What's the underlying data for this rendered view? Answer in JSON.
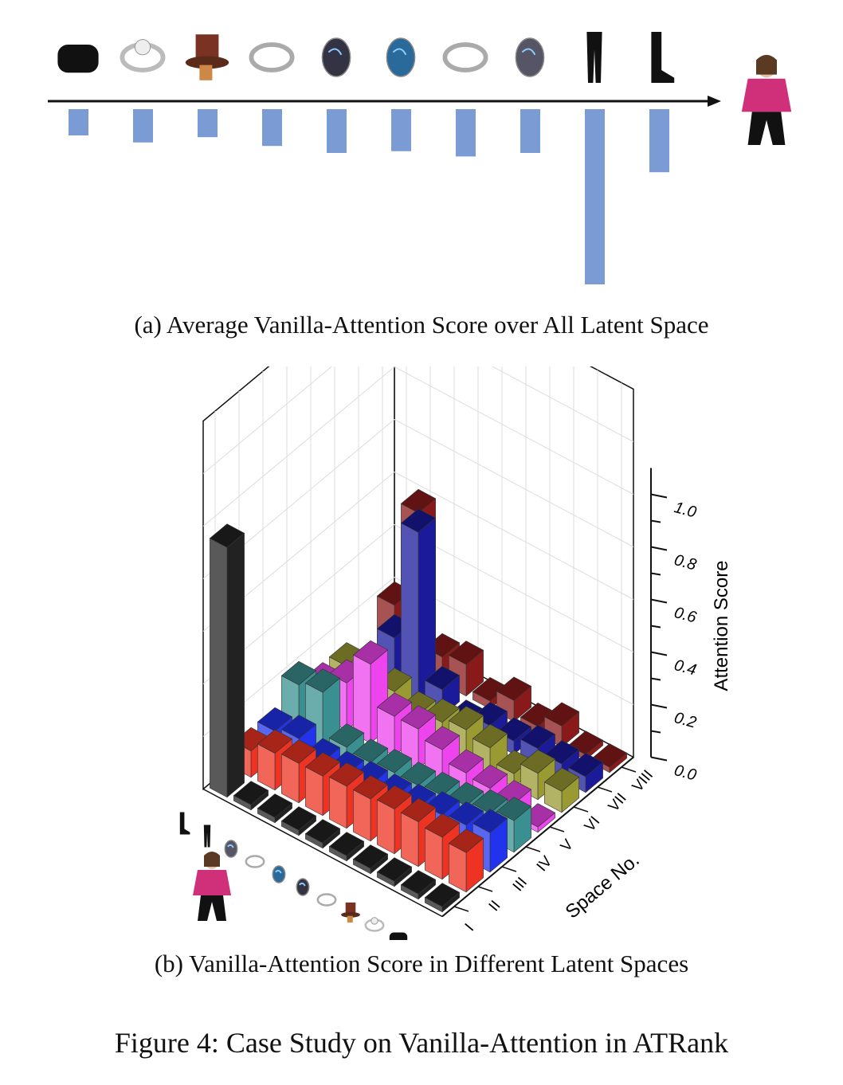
{
  "chart_data": [
    {
      "type": "bar",
      "title": "(a) Average Vanilla-Attention Score over All Latent Space",
      "orientation": "downward",
      "note": "relative attention magnitude, no axis printed",
      "categories": [
        "bag",
        "ring",
        "hat",
        "ring-2",
        "bead",
        "bead-2",
        "ring-3",
        "bead-3",
        "leggings",
        "boots"
      ],
      "values": [
        0.15,
        0.19,
        0.16,
        0.21,
        0.25,
        0.24,
        0.27,
        0.25,
        1.0,
        0.36
      ],
      "target_item": "woman-in-pink-hoodie",
      "color": "#7b9bd4"
    },
    {
      "type": "bar3d",
      "title": "(b) Vanilla-Attention Score in Different Latent Spaces",
      "zlabel": "Attention Score",
      "ylabel": "Space No.",
      "zlim": [
        0,
        1.0
      ],
      "zticks": [
        "0.0",
        "0.2",
        "0.4",
        "0.6",
        "0.8",
        "1.0"
      ],
      "spaces": [
        "I",
        "II",
        "III",
        "IV",
        "V",
        "VI",
        "VII",
        "VIII"
      ],
      "items": [
        "bag",
        "ring",
        "hat",
        "ring-2",
        "bead",
        "bead-2",
        "ring-3",
        "bead-3",
        "leggings",
        "boots"
      ],
      "series": [
        {
          "name": "I",
          "color": "#222222",
          "values": [
            0.02,
            0.02,
            0.02,
            0.02,
            0.02,
            0.02,
            0.02,
            0.02,
            0.02,
            0.95
          ]
        },
        {
          "name": "II",
          "color": "#ee3322",
          "values": [
            0.15,
            0.16,
            0.17,
            0.17,
            0.16,
            0.16,
            0.15,
            0.15,
            0.14,
            0.1
          ]
        },
        {
          "name": "III",
          "color": "#2233ee",
          "values": [
            0.15,
            0.13,
            0.12,
            0.1,
            0.09,
            0.09,
            0.08,
            0.08,
            0.12,
            0.1
          ]
        },
        {
          "name": "IV",
          "color": "#3a9090",
          "values": [
            0.12,
            0.1,
            0.08,
            0.07,
            0.06,
            0.06,
            0.05,
            0.06,
            0.22,
            0.2
          ]
        },
        {
          "name": "V",
          "color": "#ee44ee",
          "values": [
            0.02,
            0.06,
            0.07,
            0.08,
            0.12,
            0.15,
            0.15,
            0.3,
            0.18,
            0.12
          ]
        },
        {
          "name": "VI",
          "color": "#9a9a33",
          "values": [
            0.08,
            0.1,
            0.05,
            0.1,
            0.12,
            0.1,
            0.08,
            0.12,
            0.1,
            0.12
          ]
        },
        {
          "name": "VII",
          "color": "#1a1a9a",
          "values": [
            0.06,
            0.06,
            0.07,
            0.05,
            0.06,
            0.02,
            0.1,
            0.65,
            0.2,
            0.05
          ]
        },
        {
          "name": "VIII",
          "color": "#8a1a1a",
          "values": [
            0.02,
            0.02,
            0.08,
            0.03,
            0.08,
            0.03,
            0.12,
            0.1,
            0.6,
            0.2
          ]
        }
      ]
    }
  ],
  "captions": {
    "a": "(a)  Average Vanilla-Attention Score over All Latent Space",
    "b": "(b)  Vanilla-Attention Score in Different Latent Spaces",
    "figure": "Figure 4: Case Study on Vanilla-Attention in ATRank"
  }
}
